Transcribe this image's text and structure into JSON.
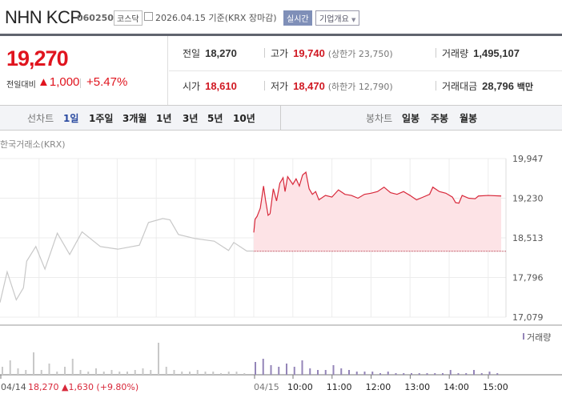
{
  "header": {
    "title": "NHN KCP",
    "code": "060250",
    "market": "코스닥",
    "date": "2026.04.15 기준(KRX 장마감)",
    "realtime_btn": "실시간",
    "company_btn": "기업개요",
    "calendar_icon": "calendar-icon"
  },
  "quote": {
    "price": "19,270",
    "change_label": "전일대비",
    "change": "1,000",
    "change_pct": "+5.47%",
    "up_color": "#e0141e",
    "prev_label": "전일",
    "prev": "18,270",
    "high_label": "고가",
    "high": "19,740",
    "upper_limit": "(상한가 23,750)",
    "volume_label": "거래량",
    "volume": "1,495,107",
    "open_label": "시가",
    "open": "18,610",
    "low_label": "저가",
    "low": "18,470",
    "lower_limit": "(하한가 12,790)",
    "value_label": "거래대금",
    "value": "28,796",
    "value_unit": "백만"
  },
  "tabs": {
    "line_label": "선차트",
    "line": [
      "1일",
      "1주일",
      "3개월",
      "1년",
      "3년",
      "5년",
      "10년"
    ],
    "active": "1일",
    "candle_label": "봉차트",
    "candle": [
      "일봉",
      "주봉",
      "월봉"
    ]
  },
  "chart_data": {
    "type": "line",
    "source": "한국거래소(KRX)",
    "yticks": [
      "19,947",
      "19,230",
      "18,513",
      "17,796",
      "17,079"
    ],
    "ylim": [
      17079,
      19947
    ],
    "xticks": [
      "10:00",
      "11:00",
      "12:00",
      "13:00",
      "14:00",
      "15:00"
    ],
    "grid": true,
    "volume_legend": "거래량",
    "prev_day": {
      "date": "04/14",
      "close": "18,270",
      "change": "1,630",
      "change_pct": "(+9.80%)",
      "color": "#c8c8c8",
      "points": [
        [
          "09:00",
          17344
        ],
        [
          "09:11",
          17898
        ],
        [
          "09:25",
          17392
        ],
        [
          "09:36",
          17609
        ],
        [
          "09:41",
          18091
        ],
        [
          "09:55",
          18356
        ],
        [
          "10:09",
          17947
        ],
        [
          "10:28",
          18597
        ],
        [
          "10:47",
          18212
        ],
        [
          "11:06",
          18621
        ],
        [
          "11:34",
          18356
        ],
        [
          "12:01",
          18308
        ],
        [
          "12:34",
          18380
        ],
        [
          "12:48",
          18790
        ],
        [
          "13:10",
          18862
        ],
        [
          "13:21",
          18838
        ],
        [
          "13:34",
          18573
        ],
        [
          "13:59",
          18501
        ],
        [
          "14:29",
          18453
        ],
        [
          "14:51",
          18284
        ],
        [
          "14:59",
          18429
        ],
        [
          "15:19",
          18274
        ],
        [
          "15:29",
          18274
        ]
      ]
    },
    "today": {
      "date": "04/15",
      "color": "#d8283a",
      "fill": "#fde3e6",
      "base": 18270,
      "points": [
        [
          "09:00",
          18610
        ],
        [
          "09:02",
          18850
        ],
        [
          "09:05",
          18900
        ],
        [
          "09:10",
          19050
        ],
        [
          "09:15",
          19450
        ],
        [
          "09:18",
          19200
        ],
        [
          "09:22",
          18920
        ],
        [
          "09:25",
          18950
        ],
        [
          "09:30",
          19400
        ],
        [
          "09:35",
          19180
        ],
        [
          "09:40",
          19500
        ],
        [
          "09:45",
          19600
        ],
        [
          "09:48",
          19350
        ],
        [
          "09:52",
          19620
        ],
        [
          "10:00",
          19480
        ],
        [
          "10:05",
          19580
        ],
        [
          "10:10",
          19450
        ],
        [
          "10:15",
          19650
        ],
        [
          "10:20",
          19700
        ],
        [
          "10:25",
          19400
        ],
        [
          "10:30",
          19300
        ],
        [
          "10:35",
          19350
        ],
        [
          "10:40",
          19200
        ],
        [
          "10:50",
          19280
        ],
        [
          "11:00",
          19250
        ],
        [
          "11:10",
          19380
        ],
        [
          "11:20",
          19300
        ],
        [
          "11:30",
          19280
        ],
        [
          "11:40",
          19230
        ],
        [
          "11:50",
          19300
        ],
        [
          "12:00",
          19320
        ],
        [
          "12:10",
          19350
        ],
        [
          "12:20",
          19430
        ],
        [
          "12:30",
          19330
        ],
        [
          "12:40",
          19300
        ],
        [
          "12:50",
          19350
        ],
        [
          "13:00",
          19280
        ],
        [
          "13:10",
          19200
        ],
        [
          "13:20",
          19250
        ],
        [
          "13:30",
          19300
        ],
        [
          "13:35",
          19430
        ],
        [
          "13:45",
          19350
        ],
        [
          "13:55",
          19320
        ],
        [
          "14:05",
          19250
        ],
        [
          "14:10",
          19150
        ],
        [
          "14:15",
          19140
        ],
        [
          "14:20",
          19280
        ],
        [
          "14:30",
          19230
        ],
        [
          "14:40",
          19220
        ],
        [
          "14:45",
          19270
        ],
        [
          "15:00",
          19280
        ],
        [
          "15:20",
          19270
        ]
      ]
    },
    "volume_rel": {
      "prev": [
        5,
        9,
        4,
        3,
        14,
        3,
        7,
        2,
        5,
        10,
        3,
        2,
        4,
        2,
        3,
        2,
        2,
        3,
        4,
        3,
        20,
        5,
        3,
        2,
        2,
        3,
        2,
        2,
        1,
        2,
        2,
        1
      ],
      "today": [
        8,
        10,
        6,
        5,
        7,
        5,
        9,
        4,
        3,
        3,
        6,
        4,
        3,
        2,
        2,
        2,
        1,
        2,
        1,
        1,
        1,
        1,
        1,
        1,
        1,
        3,
        1,
        1,
        3,
        1,
        2,
        1
      ]
    }
  }
}
